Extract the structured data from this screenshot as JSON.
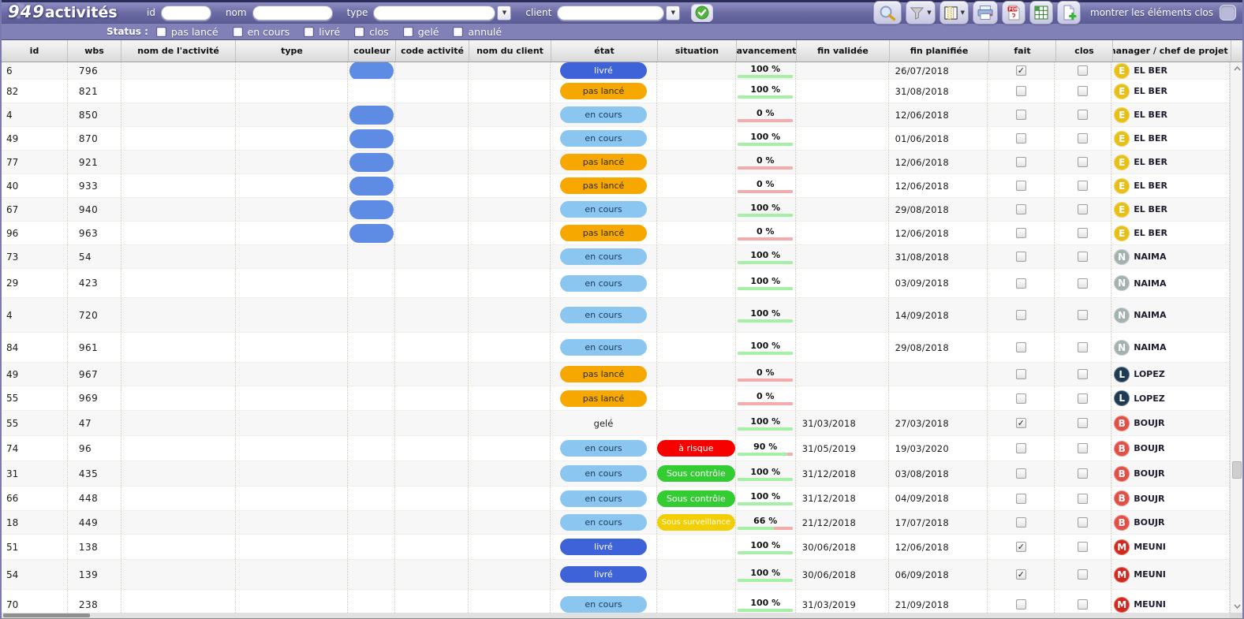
{
  "topbar": {
    "logo_number": "949",
    "logo_text": "activités",
    "filter_id_label": "id",
    "filter_nom_label": "nom",
    "filter_type_label": "type",
    "filter_client_label": "client",
    "filter_id_value": "",
    "filter_nom_value": "",
    "filter_type_value": "",
    "filter_client_value": "",
    "toolbar": [
      {
        "name": "search",
        "has_dropdown": false
      },
      {
        "name": "filter",
        "has_dropdown": true
      },
      {
        "name": "columns",
        "has_dropdown": true
      },
      {
        "name": "print",
        "has_dropdown": false
      },
      {
        "name": "pdf-export",
        "has_dropdown": false
      },
      {
        "name": "excel-export",
        "has_dropdown": false
      },
      {
        "name": "add-document",
        "has_dropdown": false
      }
    ],
    "show_closed_label": "montrer les éléments clos",
    "show_closed_checked": false
  },
  "status_bar": {
    "label": "Status :",
    "options": [
      {
        "label": "pas lancé",
        "checked": false
      },
      {
        "label": "en cours",
        "checked": false
      },
      {
        "label": "livré",
        "checked": false
      },
      {
        "label": "clos",
        "checked": false
      },
      {
        "label": "gelé",
        "checked": false
      },
      {
        "label": "annulé",
        "checked": false
      }
    ]
  },
  "table": {
    "columns": [
      "id",
      "wbs",
      "nom de l'activité",
      "type",
      "couleur",
      "code activité",
      "nom du client",
      "état",
      "situation",
      "avancement",
      "fin validée",
      "fin planifiée",
      "fait",
      "clos",
      "manager / chef de projet"
    ],
    "sorted_column": "manager / chef de projet",
    "sort_indicator": "▲",
    "rows": [
      {
        "id": "6",
        "wbs": "796",
        "couleur": true,
        "etat": "livré",
        "situation": "",
        "avancement": {
          "label": "100 %",
          "pct": 100
        },
        "fin_validee": "",
        "fin_planifiee": "26/07/2018",
        "fait": true,
        "clos": false,
        "manager": {
          "initial": "E",
          "name": "EL BER"
        }
      },
      {
        "id": "82",
        "wbs": "821",
        "couleur": false,
        "etat": "pas lancé",
        "situation": "",
        "avancement": {
          "label": "100 %",
          "pct": 100
        },
        "fin_validee": "",
        "fin_planifiee": "31/08/2018",
        "fait": false,
        "clos": false,
        "manager": {
          "initial": "E",
          "name": "EL BER"
        }
      },
      {
        "id": "4",
        "wbs": "850",
        "couleur": true,
        "etat": "en cours",
        "situation": "",
        "avancement": {
          "label": "0 %",
          "pct": 0
        },
        "fin_validee": "",
        "fin_planifiee": "12/06/2018",
        "fait": false,
        "clos": false,
        "manager": {
          "initial": "E",
          "name": "EL BER"
        }
      },
      {
        "id": "49",
        "wbs": "870",
        "couleur": true,
        "etat": "en cours",
        "situation": "",
        "avancement": {
          "label": "100 %",
          "pct": 100
        },
        "fin_validee": "",
        "fin_planifiee": "01/06/2018",
        "fait": false,
        "clos": false,
        "manager": {
          "initial": "E",
          "name": "EL BER"
        }
      },
      {
        "id": "77",
        "wbs": "921",
        "couleur": true,
        "etat": "pas lancé",
        "situation": "",
        "avancement": {
          "label": "0 %",
          "pct": 0
        },
        "fin_validee": "",
        "fin_planifiee": "12/06/2018",
        "fait": false,
        "clos": false,
        "manager": {
          "initial": "E",
          "name": "EL BER"
        }
      },
      {
        "id": "40",
        "wbs": "933",
        "couleur": true,
        "etat": "pas lancé",
        "situation": "",
        "avancement": {
          "label": "0 %",
          "pct": 0
        },
        "fin_validee": "",
        "fin_planifiee": "12/06/2018",
        "fait": false,
        "clos": false,
        "manager": {
          "initial": "E",
          "name": "EL BER"
        }
      },
      {
        "id": "67",
        "wbs": "940",
        "couleur": true,
        "etat": "en cours",
        "situation": "",
        "avancement": {
          "label": "100 %",
          "pct": 100
        },
        "fin_validee": "",
        "fin_planifiee": "29/08/2018",
        "fait": false,
        "clos": false,
        "manager": {
          "initial": "E",
          "name": "EL BER"
        }
      },
      {
        "id": "96",
        "wbs": "963",
        "couleur": true,
        "etat": "pas lancé",
        "situation": "",
        "avancement": {
          "label": "0 %",
          "pct": 0
        },
        "fin_validee": "",
        "fin_planifiee": "12/06/2018",
        "fait": false,
        "clos": false,
        "manager": {
          "initial": "E",
          "name": "EL BER"
        }
      },
      {
        "id": "73",
        "wbs": "54",
        "couleur": false,
        "etat": "en cours",
        "situation": "",
        "avancement": {
          "label": "100 %",
          "pct": 100
        },
        "fin_validee": "",
        "fin_planifiee": "31/08/2018",
        "fait": false,
        "clos": false,
        "manager": {
          "initial": "N",
          "name": "NAIMA"
        }
      },
      {
        "id": "29",
        "wbs": "423",
        "couleur": false,
        "etat": "en cours",
        "situation": "",
        "avancement": {
          "label": "100 %",
          "pct": 100
        },
        "fin_validee": "",
        "fin_planifiee": "03/09/2018",
        "fait": false,
        "clos": false,
        "manager": {
          "initial": "N",
          "name": "NAIMA"
        }
      },
      {
        "id": "4",
        "wbs": "720",
        "couleur": false,
        "etat": "en cours",
        "situation": "",
        "avancement": {
          "label": "100 %",
          "pct": 100
        },
        "fin_validee": "",
        "fin_planifiee": "14/09/2018",
        "fait": false,
        "clos": false,
        "manager": {
          "initial": "N",
          "name": "NAIMA"
        }
      },
      {
        "id": "84",
        "wbs": "961",
        "couleur": false,
        "etat": "en cours",
        "situation": "",
        "avancement": {
          "label": "100 %",
          "pct": 100
        },
        "fin_validee": "",
        "fin_planifiee": "29/08/2018",
        "fait": false,
        "clos": false,
        "manager": {
          "initial": "N",
          "name": "NAIMA"
        }
      },
      {
        "id": "49",
        "wbs": "967",
        "couleur": false,
        "etat": "pas lancé",
        "situation": "",
        "avancement": {
          "label": "0 %",
          "pct": 0
        },
        "fin_validee": "",
        "fin_planifiee": "",
        "fait": false,
        "clos": false,
        "manager": {
          "initial": "L",
          "name": "LOPEZ"
        }
      },
      {
        "id": "55",
        "wbs": "969",
        "couleur": false,
        "etat": "pas lancé",
        "situation": "",
        "avancement": {
          "label": "0 %",
          "pct": 0
        },
        "fin_validee": "",
        "fin_planifiee": "",
        "fait": false,
        "clos": false,
        "manager": {
          "initial": "L",
          "name": "LOPEZ"
        }
      },
      {
        "id": "55",
        "wbs": "47",
        "couleur": false,
        "etat": "gelé",
        "situation": "",
        "avancement": {
          "label": "100 %",
          "pct": 100
        },
        "fin_validee": "31/03/2018",
        "fin_planifiee": "27/03/2018",
        "fait": true,
        "clos": false,
        "manager": {
          "initial": "B",
          "name": "BOUJR"
        }
      },
      {
        "id": "74",
        "wbs": "96",
        "couleur": false,
        "etat": "en cours",
        "situation": "à risque",
        "avancement": {
          "label": "90 %",
          "pct": 90
        },
        "fin_validee": "31/05/2019",
        "fin_planifiee": "19/03/2020",
        "fait": false,
        "clos": false,
        "manager": {
          "initial": "B",
          "name": "BOUJR"
        }
      },
      {
        "id": "31",
        "wbs": "435",
        "couleur": false,
        "etat": "en cours",
        "situation": "Sous contrôle",
        "avancement": {
          "label": "100 %",
          "pct": 100
        },
        "fin_validee": "31/12/2018",
        "fin_planifiee": "03/08/2018",
        "fait": false,
        "clos": false,
        "manager": {
          "initial": "B",
          "name": "BOUJR"
        }
      },
      {
        "id": "66",
        "wbs": "448",
        "couleur": false,
        "etat": "en cours",
        "situation": "Sous contrôle",
        "avancement": {
          "label": "100 %",
          "pct": 100
        },
        "fin_validee": "31/12/2018",
        "fin_planifiee": "04/09/2018",
        "fait": false,
        "clos": false,
        "manager": {
          "initial": "B",
          "name": "BOUJR"
        }
      },
      {
        "id": "18",
        "wbs": "449",
        "couleur": false,
        "etat": "en cours",
        "situation": "Sous surveillance",
        "avancement": {
          "label": "66 %",
          "pct": 66
        },
        "fin_validee": "21/12/2018",
        "fin_planifiee": "17/07/2018",
        "fait": false,
        "clos": false,
        "manager": {
          "initial": "B",
          "name": "BOUJR"
        }
      },
      {
        "id": "51",
        "wbs": "138",
        "couleur": false,
        "etat": "livré",
        "situation": "",
        "avancement": {
          "label": "100 %",
          "pct": 100
        },
        "fin_validee": "30/06/2018",
        "fin_planifiee": "12/06/2018",
        "fait": true,
        "clos": false,
        "manager": {
          "initial": "M",
          "name": "MEUNI"
        }
      },
      {
        "id": "54",
        "wbs": "139",
        "couleur": false,
        "etat": "livré",
        "situation": "",
        "avancement": {
          "label": "100 %",
          "pct": 100
        },
        "fin_validee": "30/06/2018",
        "fin_planifiee": "06/09/2018",
        "fait": true,
        "clos": false,
        "manager": {
          "initial": "M",
          "name": "MEUNI"
        }
      },
      {
        "id": "70",
        "wbs": "238",
        "couleur": false,
        "etat": "en cours",
        "situation": "",
        "avancement": {
          "label": "100 %",
          "pct": 100
        },
        "fin_validee": "31/03/2019",
        "fin_planifiee": "21/09/2018",
        "fait": false,
        "clos": false,
        "manager": {
          "initial": "M",
          "name": "MEUNI"
        }
      }
    ]
  },
  "colors": {
    "etat": {
      "livré": {
        "bg": "#3E62D8",
        "fg": "#FFFFFF"
      },
      "pas lancé": {
        "bg": "#F7A800",
        "fg": "#2B2B2B"
      },
      "en cours": {
        "bg": "#8AC6EF",
        "fg": "#1B3C60"
      },
      "gelé": {
        "bg": "",
        "fg": "#222222"
      }
    },
    "situation": {
      "à risque": {
        "bg": "#F70000",
        "fg": "#FFFFFF"
      },
      "Sous contrôle": {
        "bg": "#33CC33",
        "fg": "#FFFFFF"
      },
      "Sous surveillance": {
        "bg": "#F2CE02",
        "fg": "#FFFFFF"
      }
    },
    "avatars": {
      "E": "#E9BF17",
      "N": "#A3B2AF",
      "L": "#1E3B55",
      "B": "#E25045",
      "M": "#D2281E"
    },
    "couleur_pill": "#5E8BE3",
    "progress_done": "#A5F0A5",
    "progress_remaining": "#F5ABAB"
  }
}
